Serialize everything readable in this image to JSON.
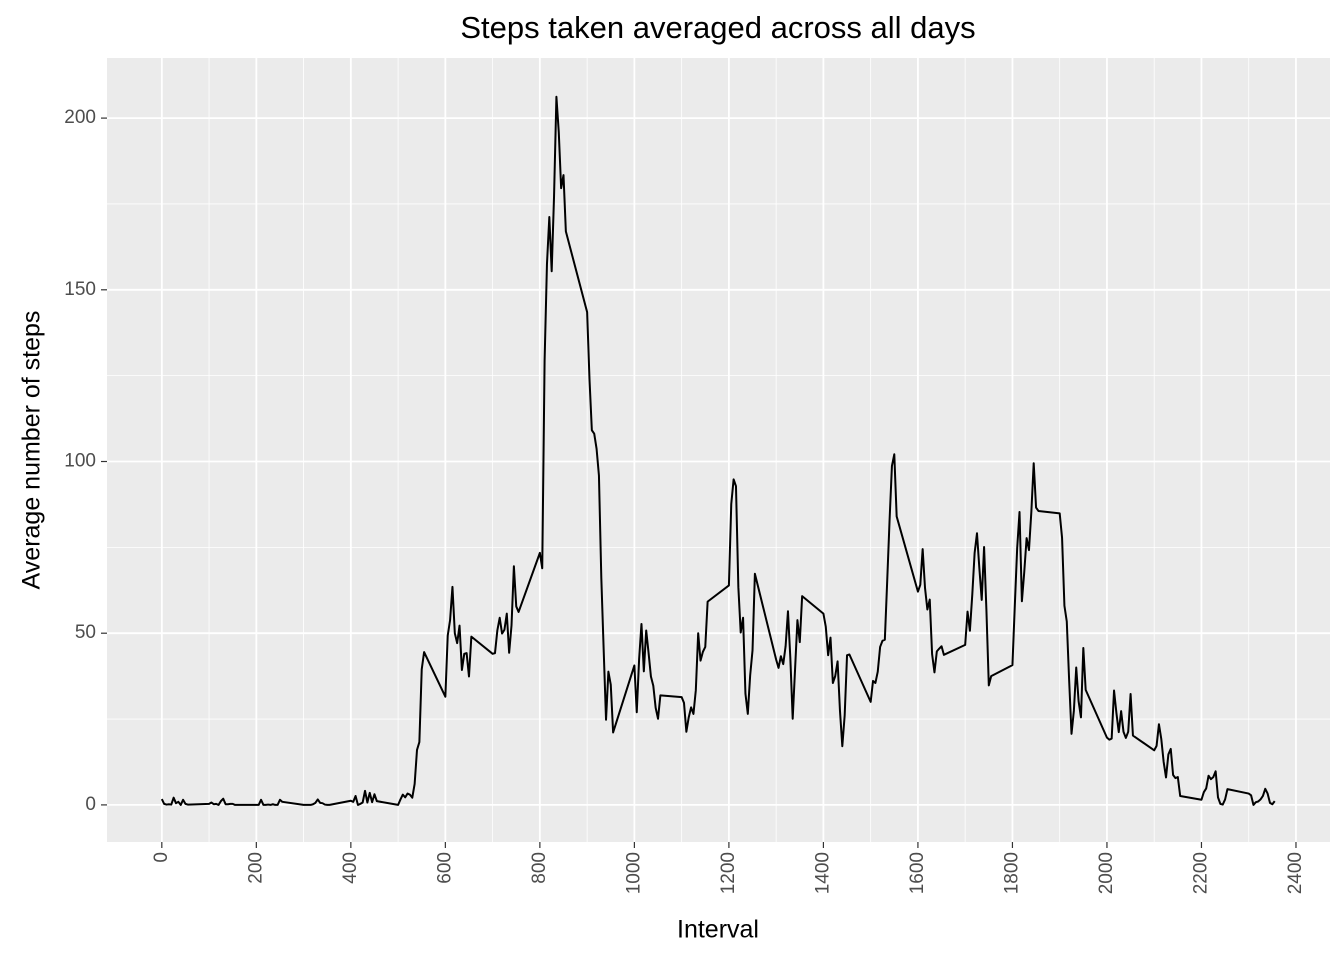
{
  "chart_data": {
    "type": "line",
    "title": "Steps taken averaged across all days",
    "x_label": "Interval",
    "y_label": "Average number of steps",
    "xlim": [
      -116,
      2472
    ],
    "ylim": [
      -10.8,
      217.5
    ],
    "xticks": [
      0,
      200,
      400,
      600,
      800,
      1000,
      1200,
      1400,
      1600,
      1800,
      2000,
      2200,
      2400
    ],
    "yticks": [
      0,
      50,
      100,
      150,
      200
    ],
    "grid": true,
    "color": "#000000",
    "panel_color": "#ebebeb",
    "x": [
      0,
      5,
      10,
      15,
      20,
      25,
      30,
      35,
      40,
      45,
      50,
      55,
      100,
      105,
      110,
      115,
      120,
      125,
      130,
      135,
      140,
      145,
      150,
      155,
      200,
      205,
      210,
      215,
      220,
      225,
      230,
      235,
      240,
      245,
      250,
      255,
      300,
      305,
      310,
      315,
      320,
      325,
      330,
      335,
      340,
      345,
      350,
      355,
      400,
      405,
      410,
      415,
      420,
      425,
      430,
      435,
      440,
      445,
      450,
      455,
      500,
      505,
      510,
      515,
      520,
      525,
      530,
      535,
      540,
      545,
      550,
      555,
      600,
      605,
      610,
      615,
      620,
      625,
      630,
      635,
      640,
      645,
      650,
      655,
      700,
      705,
      710,
      715,
      720,
      725,
      730,
      735,
      740,
      745,
      750,
      755,
      800,
      805,
      810,
      815,
      820,
      825,
      830,
      835,
      840,
      845,
      850,
      855,
      900,
      905,
      910,
      915,
      920,
      925,
      930,
      935,
      940,
      945,
      950,
      955,
      1000,
      1005,
      1010,
      1015,
      1020,
      1025,
      1030,
      1035,
      1040,
      1045,
      1050,
      1055,
      1100,
      1105,
      1110,
      1115,
      1120,
      1125,
      1130,
      1135,
      1140,
      1145,
      1150,
      1155,
      1200,
      1205,
      1210,
      1215,
      1220,
      1225,
      1230,
      1235,
      1240,
      1245,
      1250,
      1255,
      1300,
      1305,
      1310,
      1315,
      1320,
      1325,
      1330,
      1335,
      1340,
      1345,
      1350,
      1355,
      1400,
      1405,
      1410,
      1415,
      1420,
      1425,
      1430,
      1435,
      1440,
      1445,
      1450,
      1455,
      1500,
      1505,
      1510,
      1515,
      1520,
      1525,
      1530,
      1535,
      1540,
      1545,
      1550,
      1555,
      1600,
      1605,
      1610,
      1615,
      1620,
      1625,
      1630,
      1635,
      1640,
      1645,
      1650,
      1655,
      1700,
      1705,
      1710,
      1715,
      1720,
      1725,
      1730,
      1735,
      1740,
      1745,
      1750,
      1755,
      1800,
      1805,
      1810,
      1815,
      1820,
      1825,
      1830,
      1835,
      1840,
      1845,
      1850,
      1855,
      1900,
      1905,
      1910,
      1915,
      1920,
      1925,
      1930,
      1935,
      1940,
      1945,
      1950,
      1955,
      2000,
      2005,
      2010,
      2015,
      2020,
      2025,
      2030,
      2035,
      2040,
      2045,
      2050,
      2055,
      2100,
      2105,
      2110,
      2115,
      2120,
      2125,
      2130,
      2135,
      2140,
      2145,
      2150,
      2155,
      2200,
      2205,
      2210,
      2215,
      2220,
      2225,
      2230,
      2235,
      2240,
      2245,
      2250,
      2255,
      2300,
      2305,
      2310,
      2315,
      2320,
      2325,
      2330,
      2335,
      2340,
      2345,
      2350,
      2355
    ],
    "values": [
      1.7,
      0.3,
      0.1,
      0.2,
      0.1,
      2.1,
      0.5,
      0.9,
      0,
      1.5,
      0.3,
      0.1,
      0.3,
      0.7,
      0.2,
      0.3,
      0,
      1.1,
      1.8,
      0.2,
      0.2,
      0.3,
      0.3,
      0,
      0,
      0,
      1.5,
      0,
      0,
      0.1,
      0,
      0.2,
      0,
      0,
      1.5,
      0.9,
      0,
      0,
      0,
      0,
      0.2,
      0.6,
      1.6,
      0.6,
      0.5,
      0.1,
      0,
      0,
      1.2,
      0.9,
      2.6,
      0,
      0.3,
      0.7,
      4.1,
      0.7,
      3.5,
      0.8,
      3.1,
      1.1,
      0,
      1.6,
      3,
      2.2,
      3.3,
      3,
      2.1,
      6.1,
      16,
      18.3,
      39.5,
      44.5,
      31.5,
      49.3,
      53.8,
      63.5,
      50,
      47.1,
      52.2,
      39.3,
      44,
      44.2,
      37.4,
      49,
      44,
      44.2,
      50.8,
      54.5,
      49.9,
      51,
      55.7,
      44.3,
      52.3,
      69.5,
      57.8,
      56.2,
      73.4,
      68.9,
      129.4,
      157.5,
      171.2,
      155.4,
      177.3,
      206.2,
      195.9,
      179.6,
      183.4,
      167,
      143.5,
      124,
      109.1,
      108.1,
      103.7,
      95.9,
      66.2,
      45.2,
      24.8,
      38.8,
      35,
      21.1,
      40.6,
      27,
      42.4,
      52.7,
      38.9,
      50.8,
      44.3,
      37.4,
      34.7,
      28.3,
      25.1,
      31.9,
      31.4,
      29.7,
      21.3,
      25.5,
      28.4,
      26.5,
      33.4,
      50,
      42,
      44.6,
      46,
      59.2,
      63.9,
      87.6,
      94.8,
      92.8,
      63.4,
      50.2,
      54.5,
      32.4,
      26.5,
      37.7,
      45,
      67.3,
      42.3,
      39.9,
      43.3,
      41,
      46.2,
      56.4,
      42.8,
      25.1,
      39.5,
      53.8,
      47.4,
      60.8,
      55.7,
      51.9,
      43.6,
      48.7,
      35.5,
      37.5,
      41.8,
      27.5,
      17.1,
      26.1,
      43.6,
      43.8,
      30,
      36.1,
      35.5,
      38.8,
      46,
      47.8,
      48.1,
      65.3,
      82.9,
      98.7,
      102.1,
      84,
      62.1,
      64.1,
      74.5,
      63.2,
      56.9,
      59.8,
      43.9,
      38.6,
      44.7,
      45.5,
      46.2,
      43.7,
      46.6,
      56.3,
      50.7,
      61.2,
      73.4,
      79.1,
      68.9,
      59.7,
      75.1,
      56.5,
      34.8,
      37.5,
      40.7,
      58,
      74.7,
      85.3,
      59.3,
      67.8,
      77.7,
      74.2,
      85.3,
      99.5,
      86.6,
      85.6,
      84.9,
      77.8,
      58,
      53.4,
      36.3,
      20.7,
      27.4,
      40,
      30.2,
      25.5,
      45.7,
      33.5,
      19.6,
      19,
      19.3,
      33.3,
      26.8,
      21.2,
      27.3,
      21.3,
      19.5,
      21.3,
      32.3,
      20.2,
      15.9,
      17.2,
      23.5,
      19.2,
      12.5,
      8,
      14.7,
      16.3,
      8.7,
      7.8,
      8.1,
      2.6,
      1.5,
      3.7,
      4.8,
      8.5,
      7.5,
      8.1,
      9.8,
      2.2,
      0.3,
      0.1,
      1.6,
      4.6,
      3.3,
      2.8,
      0,
      0.8,
      1,
      1.6,
      2.6,
      4.7,
      3.3,
      0.6,
      0.2,
      1.1
    ]
  }
}
